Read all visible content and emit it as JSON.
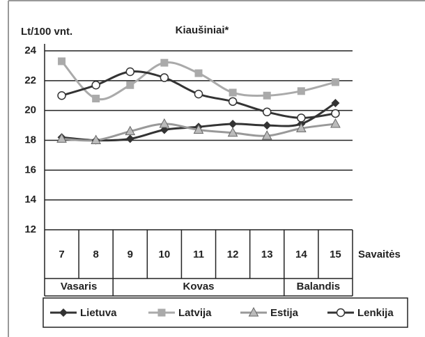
{
  "chart_data": {
    "type": "line",
    "title": "Kiaušiniai*",
    "y_label": "Lt/100 vnt.",
    "x_label": "Savaitės",
    "categories": [
      "7",
      "8",
      "9",
      "10",
      "11",
      "12",
      "13",
      "14",
      "15"
    ],
    "category_groups": [
      {
        "label": "Vasaris",
        "span": [
          0,
          1
        ]
      },
      {
        "label": "Kovas",
        "span": [
          2,
          6
        ]
      },
      {
        "label": "Balandis",
        "span": [
          7,
          8
        ]
      }
    ],
    "series": [
      {
        "name": "Lietuva",
        "color": "#333333",
        "marker": "diamond",
        "values": [
          18.2,
          18.0,
          18.1,
          18.7,
          18.9,
          19.1,
          19.0,
          19.1,
          20.5
        ]
      },
      {
        "name": "Latvija",
        "color": "#aaaaaa",
        "marker": "square",
        "values": [
          23.3,
          20.8,
          21.7,
          23.2,
          22.5,
          21.2,
          21.0,
          21.3,
          21.9
        ]
      },
      {
        "name": "Estija",
        "color": "#999999",
        "marker": "triangle",
        "values": [
          18.1,
          18.0,
          18.6,
          19.1,
          18.7,
          18.5,
          18.3,
          18.8,
          19.1
        ]
      },
      {
        "name": "Lenkija",
        "color": "#333333",
        "marker": "circle",
        "values": [
          21.0,
          21.7,
          22.6,
          22.2,
          21.1,
          20.6,
          19.9,
          19.5,
          19.8
        ]
      }
    ],
    "ylim": [
      12,
      24
    ],
    "yticks": [
      12,
      14,
      16,
      18,
      20,
      22,
      24
    ],
    "grid": true
  }
}
